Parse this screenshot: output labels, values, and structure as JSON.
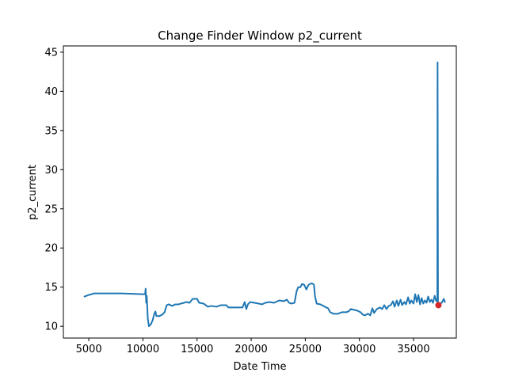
{
  "chart_data": {
    "type": "line",
    "title": "Change Finder Window p2_current",
    "xlabel": "Date Time",
    "ylabel": "p2_current",
    "xlim": [
      2650,
      38950
    ],
    "ylim": [
      8.5,
      45.8
    ],
    "xticks": [
      5000,
      10000,
      15000,
      20000,
      25000,
      30000,
      35000
    ],
    "yticks": [
      10,
      15,
      20,
      25,
      30,
      35,
      40,
      45
    ],
    "grid": false,
    "series": [
      {
        "color": "#1f77b4",
        "points": [
          [
            4600,
            13.8
          ],
          [
            5000,
            14.0
          ],
          [
            5500,
            14.2
          ],
          [
            6000,
            14.2
          ],
          [
            7000,
            14.2
          ],
          [
            8000,
            14.2
          ],
          [
            9000,
            14.15
          ],
          [
            10000,
            14.1
          ],
          [
            10200,
            14.1
          ],
          [
            10250,
            14.8
          ],
          [
            10300,
            13.0
          ],
          [
            10350,
            13.9
          ],
          [
            10450,
            11.0
          ],
          [
            10550,
            10.0
          ],
          [
            10750,
            10.3
          ],
          [
            10900,
            10.8
          ],
          [
            11050,
            11.6
          ],
          [
            11150,
            11.9
          ],
          [
            11250,
            11.3
          ],
          [
            11500,
            11.3
          ],
          [
            11800,
            11.5
          ],
          [
            12000,
            11.8
          ],
          [
            12200,
            12.7
          ],
          [
            12400,
            12.8
          ],
          [
            12700,
            12.6
          ],
          [
            13000,
            12.8
          ],
          [
            13300,
            12.8
          ],
          [
            13500,
            12.9
          ],
          [
            13800,
            13.0
          ],
          [
            14000,
            13.1
          ],
          [
            14300,
            13.0
          ],
          [
            14600,
            13.5
          ],
          [
            15000,
            13.5
          ],
          [
            15200,
            13.0
          ],
          [
            15600,
            12.9
          ],
          [
            16000,
            12.5
          ],
          [
            16300,
            12.6
          ],
          [
            16800,
            12.5
          ],
          [
            17200,
            12.7
          ],
          [
            17700,
            12.7
          ],
          [
            17900,
            12.4
          ],
          [
            18300,
            12.4
          ],
          [
            18800,
            12.4
          ],
          [
            19200,
            12.4
          ],
          [
            19400,
            13.1
          ],
          [
            19550,
            12.2
          ],
          [
            19700,
            12.8
          ],
          [
            19900,
            13.1
          ],
          [
            20300,
            13.0
          ],
          [
            20700,
            12.9
          ],
          [
            21000,
            12.8
          ],
          [
            21300,
            13.0
          ],
          [
            21700,
            13.1
          ],
          [
            22100,
            13.0
          ],
          [
            22600,
            13.3
          ],
          [
            23000,
            13.2
          ],
          [
            23300,
            13.4
          ],
          [
            23500,
            13.0
          ],
          [
            23700,
            12.9
          ],
          [
            24000,
            13.0
          ],
          [
            24200,
            14.5
          ],
          [
            24350,
            15.0
          ],
          [
            24550,
            15.0
          ],
          [
            24700,
            15.4
          ],
          [
            24900,
            15.3
          ],
          [
            25100,
            14.7
          ],
          [
            25300,
            15.3
          ],
          [
            25600,
            15.5
          ],
          [
            25800,
            15.3
          ],
          [
            25900,
            13.8
          ],
          [
            26050,
            12.9
          ],
          [
            26400,
            12.8
          ],
          [
            26800,
            12.5
          ],
          [
            27100,
            12.3
          ],
          [
            27300,
            11.8
          ],
          [
            27600,
            11.6
          ],
          [
            28000,
            11.6
          ],
          [
            28400,
            11.8
          ],
          [
            28800,
            11.8
          ],
          [
            29000,
            11.9
          ],
          [
            29200,
            12.2
          ],
          [
            29500,
            12.1
          ],
          [
            29800,
            12.0
          ],
          [
            30100,
            11.8
          ],
          [
            30300,
            11.5
          ],
          [
            30500,
            11.4
          ],
          [
            30800,
            11.6
          ],
          [
            31000,
            11.4
          ],
          [
            31200,
            12.3
          ],
          [
            31350,
            11.7
          ],
          [
            31600,
            12.2
          ],
          [
            31900,
            12.4
          ],
          [
            32100,
            12.2
          ],
          [
            32300,
            12.7
          ],
          [
            32500,
            12.2
          ],
          [
            32700,
            12.6
          ],
          [
            32900,
            12.7
          ],
          [
            33100,
            13.2
          ],
          [
            33250,
            12.5
          ],
          [
            33450,
            13.3
          ],
          [
            33600,
            12.6
          ],
          [
            33800,
            13.4
          ],
          [
            33950,
            12.7
          ],
          [
            34150,
            13.1
          ],
          [
            34300,
            12.8
          ],
          [
            34500,
            13.7
          ],
          [
            34650,
            12.9
          ],
          [
            34800,
            13.3
          ],
          [
            35000,
            12.9
          ],
          [
            35150,
            14.1
          ],
          [
            35300,
            13.1
          ],
          [
            35450,
            14.0
          ],
          [
            35600,
            12.8
          ],
          [
            35750,
            13.6
          ],
          [
            35900,
            12.9
          ],
          [
            36050,
            13.3
          ],
          [
            36200,
            13.0
          ],
          [
            36350,
            13.8
          ],
          [
            36500,
            13.1
          ],
          [
            36650,
            13.4
          ],
          [
            36800,
            13.0
          ],
          [
            36950,
            13.9
          ],
          [
            37100,
            13.2
          ],
          [
            37200,
            13.3
          ],
          [
            37220,
            43.7
          ],
          [
            37260,
            12.8
          ],
          [
            37400,
            12.9
          ],
          [
            37600,
            13.0
          ],
          [
            37800,
            13.5
          ],
          [
            37900,
            13.1
          ]
        ]
      },
      {
        "type": "scatter",
        "color": "#d62728",
        "points": [
          [
            37300,
            12.7
          ]
        ]
      }
    ]
  }
}
